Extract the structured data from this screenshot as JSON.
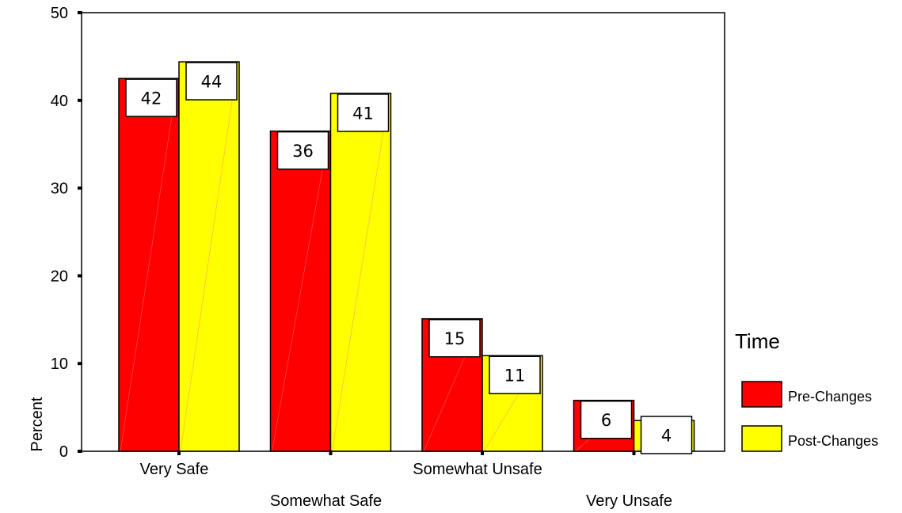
{
  "chart_data": {
    "type": "bar",
    "title": "",
    "xlabel": "",
    "ylabel": "Percent",
    "ylim": [
      0,
      50
    ],
    "yticks": [
      "0",
      "10",
      "20",
      "30",
      "40",
      "50"
    ],
    "categories": [
      "Very Safe",
      "Somewhat Safe",
      "Somewhat Unsafe",
      "Very Unsafe"
    ],
    "series": [
      {
        "name": "Pre-Changes",
        "color": "#ff0000",
        "values": [
          42.5,
          36.5,
          15.1,
          5.8
        ],
        "labels": [
          "42",
          "36",
          "15",
          "6"
        ]
      },
      {
        "name": "Post-Changes",
        "color": "#ffff00",
        "values": [
          44.4,
          40.8,
          10.9,
          3.5
        ],
        "labels": [
          "44",
          "41",
          "11",
          "4"
        ]
      }
    ],
    "legend": {
      "title": "Time",
      "position": "right"
    },
    "grid": false
  }
}
